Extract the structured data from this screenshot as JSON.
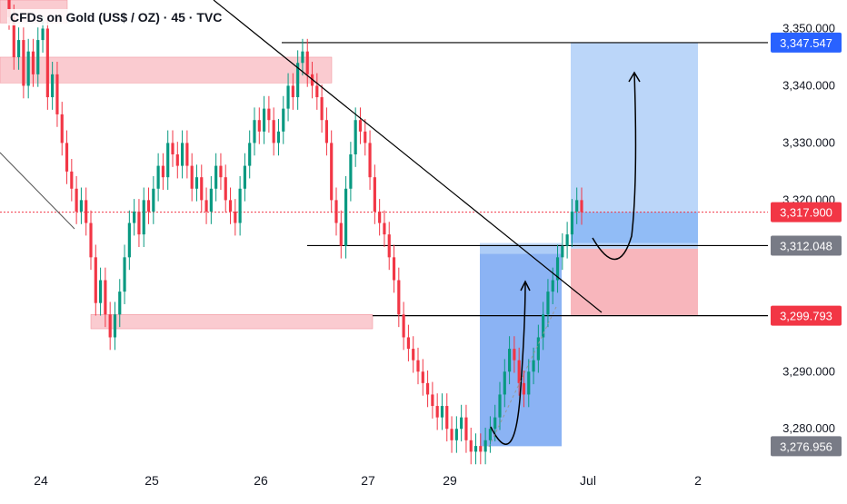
{
  "title": "CFDs on Gold (US$ / OZ) · 45 · TVC",
  "colors": {
    "up": "#089981",
    "down": "#f23645",
    "zone": "#f7a9b0",
    "tp": "#9ec5f6",
    "sl": "#f7a9b0",
    "label_red": "#f23645",
    "label_blue": "#2962ff",
    "label_gray": "#787b86",
    "grid_text": "#131722"
  },
  "chart_data": {
    "type": "candlestick",
    "title": "CFDs on Gold (US$ / OZ) · 45 · TVC",
    "x_tick_labels": [
      "24",
      "25",
      "26",
      "27",
      "29",
      "Jul",
      "2"
    ],
    "y_tick_labels": [
      "3,350.000",
      "3,340.000",
      "3,330.000",
      "3,320.000",
      "3,290.000",
      "3,280.000"
    ],
    "ylim": [
      3274,
      3355
    ],
    "price_labels": [
      {
        "id": "tp",
        "text": "3,347.547",
        "value": 3347.547,
        "style": "blue"
      },
      {
        "id": "current",
        "text": "3,317.900",
        "value": 3317.9,
        "style": "red"
      },
      {
        "id": "entry",
        "text": "3,312.048",
        "value": 3312.048,
        "style": "gray"
      },
      {
        "id": "support",
        "text": "3,299.793",
        "value": 3299.793,
        "style": "red"
      },
      {
        "id": "low",
        "text": "3,276.956",
        "value": 3276.956,
        "style": "gray"
      }
    ],
    "horizontal_levels": [
      3347.547,
      3312.048,
      3299.793
    ],
    "current_price": 3317.9,
    "grid": false,
    "candles_close": [
      3352,
      3345,
      3348,
      3340,
      3346,
      3342,
      3348,
      3350,
      3338,
      3342,
      3335,
      3330,
      3325,
      3322,
      3318,
      3320,
      3316,
      3310,
      3302,
      3306,
      3300,
      3296,
      3300,
      3304,
      3310,
      3316,
      3318,
      3314,
      3320,
      3318,
      3322,
      3326,
      3324,
      3330,
      3328,
      3326,
      3330,
      3326,
      3322,
      3324,
      3320,
      3318,
      3322,
      3326,
      3324,
      3320,
      3318,
      3316,
      3322,
      3326,
      3330,
      3334,
      3332,
      3336,
      3334,
      3330,
      3332,
      3336,
      3340,
      3338,
      3344,
      3346,
      3342,
      3340,
      3338,
      3334,
      3330,
      3320,
      3316,
      3312,
      3322,
      3328,
      3334,
      3332,
      3330,
      3324,
      3318,
      3316,
      3314,
      3310,
      3306,
      3300,
      3296,
      3294,
      3292,
      3290,
      3288,
      3286,
      3284,
      3282,
      3284,
      3280,
      3278,
      3280,
      3282,
      3278,
      3276,
      3277,
      3276,
      3278,
      3280,
      3282,
      3286,
      3290,
      3294,
      3292,
      3288,
      3286,
      3290,
      3292,
      3296,
      3300,
      3304,
      3306,
      3310,
      3312,
      3314,
      3318,
      3320,
      3317.9
    ],
    "tp_zone": [
      3311.5,
      3347.547
    ],
    "sl_zone": [
      3299.793,
      3311.5
    ],
    "buy_zone_left": [
      3276.956,
      3312.048
    ]
  }
}
